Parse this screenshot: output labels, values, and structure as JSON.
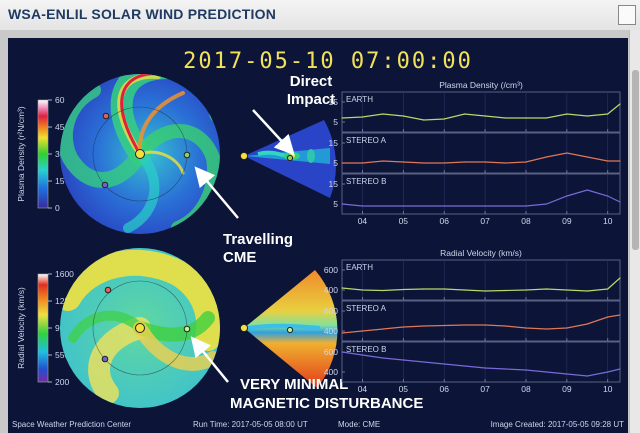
{
  "header": {
    "title": "WSA-ENLIL SOLAR WIND PREDICTION"
  },
  "timestamp": "2017-05-10  07:00:00",
  "colorbars": {
    "density": {
      "label": "Plasma Density (r²N/cm³)",
      "ticks": [
        "60",
        "45",
        "30",
        "15",
        "0"
      ]
    },
    "velocity": {
      "label": "Radial Velocity (km/s)",
      "ticks": [
        "1600",
        "1250",
        "900",
        "550",
        "200"
      ]
    }
  },
  "annotations": {
    "direct_impact_1": "Direct",
    "direct_impact_2": "Impact",
    "travelling_1": "Travelling",
    "travelling_2": "CME",
    "minimal_1": "VERY MINIMAL",
    "minimal_2": "MAGNETIC DISTURBANCE"
  },
  "footer": {
    "center": "Space Weather Prediction Center",
    "run_time": "Run Time: 2017-05-05 08:00 UT",
    "mode": "Mode: CME",
    "image_created": "Image Created: 2017-05-05 09:28 UT"
  },
  "chart_data": [
    {
      "type": "line",
      "title": "Plasma Density (/cm³)",
      "x_ticks": [
        "04",
        "05",
        "06",
        "07",
        "08",
        "09",
        "10"
      ],
      "panels": [
        {
          "name": "EARTH",
          "color": "#b7d96a",
          "ylim": [
            0,
            20
          ],
          "y_ticks": [
            "15",
            "5"
          ],
          "x": [
            3.5,
            4,
            4.5,
            5,
            5.5,
            6,
            6.5,
            7,
            7.5,
            8,
            8.5,
            9,
            9.5,
            10,
            10.3
          ],
          "values": [
            7,
            7.5,
            9,
            8,
            6,
            6.5,
            9,
            8,
            7,
            7,
            7,
            9,
            8,
            9,
            14
          ]
        },
        {
          "name": "STEREO A",
          "color": "#e07858",
          "ylim": [
            0,
            20
          ],
          "y_ticks": [
            "15",
            "5"
          ],
          "x": [
            3.5,
            4,
            4.5,
            5,
            5.5,
            6,
            6.5,
            7,
            7.5,
            8,
            8.5,
            9,
            9.5,
            10,
            10.3
          ],
          "values": [
            5,
            5,
            6,
            5.5,
            5,
            5,
            5.5,
            5.5,
            5,
            5.5,
            8,
            10,
            8,
            6,
            6
          ]
        },
        {
          "name": "STEREO B",
          "color": "#7a6ad9",
          "ylim": [
            0,
            20
          ],
          "y_ticks": [
            "15",
            "5"
          ],
          "x": [
            3.5,
            4,
            4.5,
            5,
            5.5,
            6,
            6.5,
            7,
            7.5,
            8,
            8.5,
            9,
            9.5,
            10,
            10.3
          ],
          "values": [
            5,
            4,
            4,
            4,
            4,
            4,
            4,
            4,
            4,
            4,
            5,
            9,
            12,
            9,
            6
          ]
        }
      ]
    },
    {
      "type": "line",
      "title": "Radial Velocity (km/s)",
      "x_ticks": [
        "04",
        "05",
        "06",
        "07",
        "08",
        "09",
        "10"
      ],
      "panels": [
        {
          "name": "EARTH",
          "color": "#b7d96a",
          "ylim": [
            300,
            700
          ],
          "y_ticks": [
            "600",
            "400"
          ],
          "x": [
            3.5,
            4,
            4.5,
            5,
            5.5,
            6,
            6.5,
            7,
            7.5,
            8,
            8.5,
            9,
            9.5,
            10,
            10.3
          ],
          "values": [
            420,
            400,
            395,
            405,
            410,
            410,
            400,
            390,
            395,
            400,
            410,
            400,
            390,
            410,
            520
          ]
        },
        {
          "name": "STEREO A",
          "color": "#e07858",
          "ylim": [
            300,
            700
          ],
          "y_ticks": [
            "600",
            "400"
          ],
          "x": [
            3.5,
            4,
            4.5,
            5,
            5.5,
            6,
            6.5,
            7,
            7.5,
            8,
            8.5,
            9,
            9.5,
            10,
            10.3
          ],
          "values": [
            380,
            400,
            420,
            440,
            450,
            455,
            460,
            460,
            450,
            430,
            420,
            430,
            470,
            540,
            560
          ]
        },
        {
          "name": "STEREO B",
          "color": "#7a6ad9",
          "ylim": [
            300,
            700
          ],
          "y_ticks": [
            "600",
            "400"
          ],
          "x": [
            3.5,
            4,
            4.5,
            5,
            5.5,
            6,
            6.5,
            7,
            7.5,
            8,
            8.5,
            9,
            9.5,
            10,
            10.3
          ],
          "values": [
            600,
            570,
            540,
            520,
            500,
            480,
            460,
            440,
            430,
            420,
            400,
            380,
            360,
            400,
            430
          ]
        }
      ]
    }
  ]
}
